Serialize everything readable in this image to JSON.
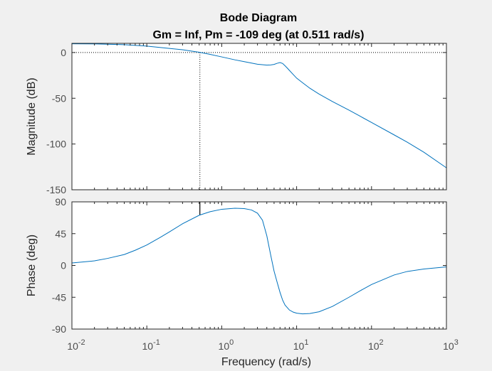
{
  "figure": {
    "title_line1": "Bode Diagram",
    "title_line2": "Gm = Inf,  Pm = -109 deg (at 0.511 rad/s)",
    "background": "#f0f0f0",
    "axes_background": "#ffffff",
    "line_color": "#0072bd"
  },
  "chart_data": [
    {
      "type": "line",
      "name": "magnitude",
      "xscale": "log",
      "xlim": [
        0.01,
        1000
      ],
      "ylim": [
        -150,
        10
      ],
      "ylabel": "Magnitude (dB)",
      "yticks": [
        0,
        -50,
        -100,
        -150
      ],
      "ytick_labels": [
        "0",
        "-50",
        "-100",
        "-150"
      ],
      "grid": false,
      "reference_line": {
        "y": 0,
        "style": "dotted"
      },
      "margin_marker": {
        "x": 0.511,
        "style": "dotted"
      },
      "series": [
        {
          "x": [
            0.01,
            0.02,
            0.05,
            0.1,
            0.2,
            0.3,
            0.5,
            0.7,
            1,
            1.5,
            2,
            3,
            4,
            4.5,
            5,
            5.5,
            6,
            6.5,
            7,
            7.5,
            8,
            9,
            10,
            12,
            15,
            20,
            30,
            50,
            70,
            100,
            200,
            300,
            500,
            1000
          ],
          "y": [
            9.5,
            9.4,
            8.5,
            7.0,
            4.5,
            3.0,
            0.3,
            -2.0,
            -4.8,
            -8.0,
            -10.0,
            -12.8,
            -13.8,
            -13.6,
            -13.0,
            -11.8,
            -11.0,
            -12.0,
            -14.5,
            -17.0,
            -19.5,
            -24.0,
            -28.0,
            -33.0,
            -39.0,
            -45.5,
            -53.5,
            -63.0,
            -69.5,
            -76.5,
            -90.0,
            -98.0,
            -109.0,
            -126.0
          ]
        }
      ]
    },
    {
      "type": "line",
      "name": "phase",
      "xscale": "log",
      "xlim": [
        0.01,
        1000
      ],
      "ylim": [
        -90,
        90
      ],
      "ylabel": "Phase (deg)",
      "xlabel": "Frequency  (rad/s)",
      "xticks": [
        0.01,
        0.1,
        1,
        10,
        100,
        1000
      ],
      "xtick_labels": [
        {
          "base": "10",
          "exp": "-2"
        },
        {
          "base": "10",
          "exp": "-1"
        },
        {
          "base": "10",
          "exp": "0"
        },
        {
          "base": "10",
          "exp": "1"
        },
        {
          "base": "10",
          "exp": "2"
        },
        {
          "base": "10",
          "exp": "3"
        }
      ],
      "yticks": [
        90,
        45,
        0,
        -45,
        -90
      ],
      "ytick_labels": [
        "90",
        "45",
        "0",
        "-45",
        "-90"
      ],
      "grid": false,
      "margin_marker": {
        "x": 0.511,
        "y_from": 90,
        "y_to": 71,
        "style": "solid"
      },
      "series": [
        {
          "x": [
            0.01,
            0.02,
            0.03,
            0.05,
            0.07,
            0.1,
            0.15,
            0.2,
            0.3,
            0.5,
            0.7,
            1,
            1.5,
            2,
            2.5,
            3,
            3.5,
            4,
            4.5,
            5,
            5.5,
            6,
            6.5,
            7,
            8,
            9,
            10,
            12,
            15,
            20,
            30,
            50,
            70,
            100,
            200,
            300,
            500,
            1000
          ],
          "y": [
            3.5,
            6.5,
            10.0,
            15.5,
            21.5,
            29.0,
            39.5,
            47.5,
            59.0,
            71.0,
            76.0,
            79.5,
            81.0,
            80.5,
            78.5,
            74.0,
            64.0,
            42.0,
            15.0,
            -8.0,
            -24.0,
            -38.0,
            -49.0,
            -56.0,
            -63.0,
            -66.0,
            -67.5,
            -68.5,
            -68.0,
            -65.5,
            -58.0,
            -45.0,
            -36.0,
            -27.0,
            -13.5,
            -8.5,
            -5.0,
            -2.0
          ]
        }
      ]
    }
  ]
}
